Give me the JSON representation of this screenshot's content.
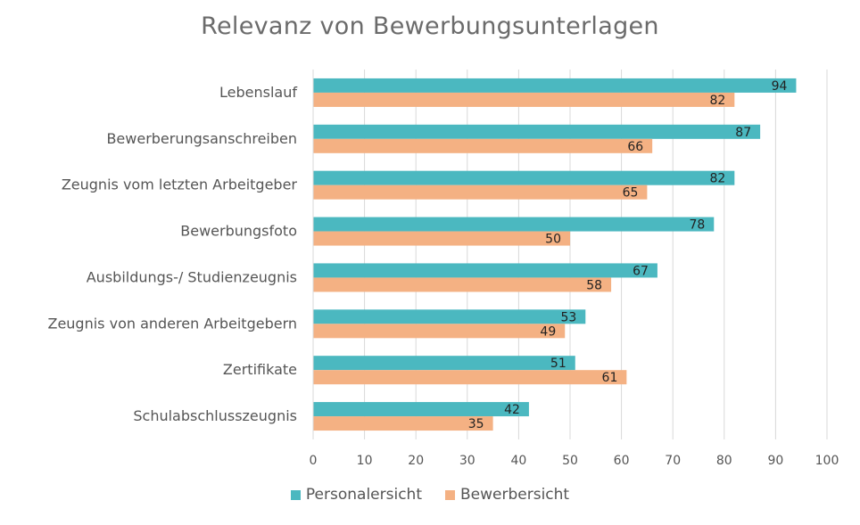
{
  "chart_data": {
    "type": "bar",
    "orientation": "horizontal",
    "title": "Relevanz von Bewerbungsunterlagen",
    "categories": [
      "Lebenslauf",
      "Bewerberungsanschreiben",
      "Zeugnis vom letzten Arbeitgeber",
      "Bewerbungsfoto",
      "Ausbildungs-/ Studienzeugnis",
      "Zeugnis von anderen Arbeitgebern",
      "Zertifikate",
      "Schulabschlusszeugnis"
    ],
    "series": [
      {
        "name": "Personalersicht",
        "color": "#4bb8c0",
        "values": [
          94,
          87,
          82,
          78,
          67,
          53,
          51,
          42
        ]
      },
      {
        "name": "Bewerbersicht",
        "color": "#f4b183",
        "values": [
          82,
          66,
          65,
          50,
          58,
          49,
          61,
          35
        ]
      }
    ],
    "xlim": [
      0,
      100
    ],
    "xticks": [
      0,
      10,
      20,
      30,
      40,
      50,
      60,
      70,
      80,
      90,
      100
    ],
    "grid": true,
    "legend": "bottom"
  }
}
